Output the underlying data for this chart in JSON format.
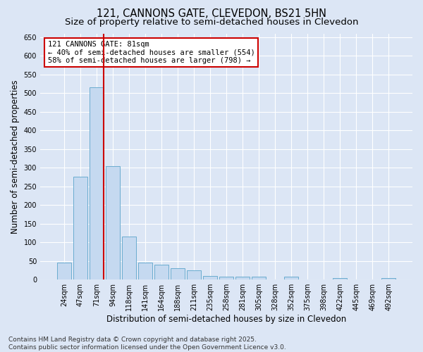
{
  "title_line1": "121, CANNONS GATE, CLEVEDON, BS21 5HN",
  "title_line2": "Size of property relative to semi-detached houses in Clevedon",
  "xlabel": "Distribution of semi-detached houses by size in Clevedon",
  "ylabel": "Number of semi-detached properties",
  "categories": [
    "24sqm",
    "47sqm",
    "71sqm",
    "94sqm",
    "118sqm",
    "141sqm",
    "164sqm",
    "188sqm",
    "211sqm",
    "235sqm",
    "258sqm",
    "281sqm",
    "305sqm",
    "328sqm",
    "352sqm",
    "375sqm",
    "398sqm",
    "422sqm",
    "445sqm",
    "469sqm",
    "492sqm"
  ],
  "values": [
    45,
    275,
    515,
    305,
    115,
    45,
    40,
    30,
    25,
    10,
    8,
    8,
    8,
    0,
    8,
    0,
    0,
    5,
    0,
    0,
    5
  ],
  "bar_color": "#c5d9f0",
  "bar_edge_color": "#6aaccf",
  "marker_color": "#cc0000",
  "annotation_text": "121 CANNONS GATE: 81sqm\n← 40% of semi-detached houses are smaller (554)\n58% of semi-detached houses are larger (798) →",
  "ylim": [
    0,
    660
  ],
  "yticks": [
    0,
    50,
    100,
    150,
    200,
    250,
    300,
    350,
    400,
    450,
    500,
    550,
    600,
    650
  ],
  "footer_text": "Contains HM Land Registry data © Crown copyright and database right 2025.\nContains public sector information licensed under the Open Government Licence v3.0.",
  "background_color": "#dce6f5",
  "plot_background_color": "#dce6f5",
  "title_fontsize": 10.5,
  "subtitle_fontsize": 9.5,
  "axis_label_fontsize": 8.5,
  "tick_fontsize": 7,
  "annotation_fontsize": 7.5,
  "footer_fontsize": 6.5
}
